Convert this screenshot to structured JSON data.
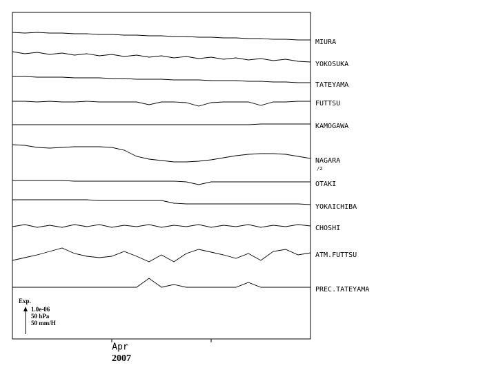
{
  "chart_data": {
    "type": "line",
    "x": [
      0,
      0.125,
      0.25,
      0.375,
      0.5,
      0.625,
      0.75,
      0.875,
      1,
      1.125,
      1.25,
      1.375,
      1.5,
      1.625,
      1.75,
      1.875,
      2,
      2.125,
      2.25,
      2.375,
      2.5,
      2.625,
      2.75,
      2.875,
      3
    ],
    "xlim": [
      0,
      3
    ],
    "xticks": [
      {
        "value": 1,
        "label": "Apr"
      }
    ],
    "minor_xticks": [
      2
    ],
    "year": "2007",
    "ylim": [
      0,
      474
    ],
    "color": "#000000",
    "series": [
      {
        "name": "MIURA",
        "values": [
          445,
          444,
          445,
          444,
          444,
          443,
          443,
          442,
          442,
          441,
          441,
          440,
          440,
          439,
          439,
          438,
          438,
          437,
          437,
          436,
          436,
          435,
          435,
          434,
          434
        ]
      },
      {
        "name": "YOKOSUKA",
        "values": [
          417,
          414,
          416,
          413,
          415,
          412,
          414,
          411,
          413,
          410,
          412,
          409,
          411,
          408,
          410,
          407,
          409,
          406,
          408,
          405,
          407,
          404,
          406,
          403,
          402
        ]
      },
      {
        "name": "TATEYAMA",
        "values": [
          381,
          381,
          380,
          380,
          380,
          379,
          379,
          379,
          378,
          378,
          377,
          377,
          377,
          376,
          376,
          376,
          375,
          375,
          375,
          374,
          374,
          373,
          373,
          372,
          372
        ]
      },
      {
        "name": "FUTTSU",
        "values": [
          345,
          345,
          344,
          345,
          344,
          344,
          345,
          344,
          344,
          344,
          344,
          340,
          344,
          344,
          343,
          338,
          343,
          344,
          344,
          344,
          339,
          344,
          344,
          345,
          345
        ]
      },
      {
        "name": "KAMOGAWA",
        "values": [
          311,
          311,
          311,
          311,
          311,
          311,
          311,
          311,
          311,
          311,
          311,
          311,
          311,
          311,
          311,
          311,
          311,
          311,
          311,
          311,
          312,
          312,
          312,
          312,
          312
        ]
      },
      {
        "name": "NAGARA",
        "note": "/2",
        "values": [
          282,
          281,
          278,
          277,
          278,
          279,
          279,
          279,
          278,
          274,
          265,
          261,
          259,
          257,
          257,
          258,
          260,
          263,
          266,
          268,
          269,
          269,
          268,
          265,
          262
        ]
      },
      {
        "name": "OTAKI",
        "values": [
          230,
          230,
          230,
          230,
          230,
          229,
          229,
          229,
          229,
          229,
          229,
          229,
          229,
          229,
          228,
          224,
          228,
          228,
          228,
          228,
          228,
          228,
          228,
          228,
          228
        ]
      },
      {
        "name": "YOKAICHIBA",
        "values": [
          202,
          202,
          202,
          202,
          202,
          202,
          202,
          201,
          201,
          201,
          201,
          201,
          201,
          197,
          196,
          196,
          196,
          196,
          196,
          196,
          196,
          196,
          196,
          196,
          195
        ]
      },
      {
        "name": "CHOSHI",
        "values": [
          163,
          166,
          162,
          165,
          162,
          166,
          163,
          166,
          162,
          165,
          163,
          166,
          162,
          165,
          163,
          166,
          162,
          165,
          163,
          166,
          162,
          165,
          163,
          166,
          164
        ]
      },
      {
        "name": "ATM.FUTTSU",
        "values": [
          114,
          118,
          122,
          127,
          132,
          124,
          120,
          118,
          120,
          127,
          120,
          112,
          122,
          112,
          124,
          130,
          126,
          122,
          117,
          124,
          114,
          127,
          130,
          122,
          125
        ]
      },
      {
        "name": "PREC.TATEYAMA",
        "values": [
          75,
          75,
          75,
          75,
          75,
          75,
          75,
          75,
          75,
          75,
          75,
          88,
          75,
          79,
          75,
          75,
          75,
          75,
          75,
          82,
          75,
          75,
          75,
          75,
          75
        ]
      }
    ],
    "scale_legend": {
      "title": "Exp.",
      "lines": [
        "1.0e-06",
        "50 hPa",
        "50 mm/H"
      ]
    }
  }
}
